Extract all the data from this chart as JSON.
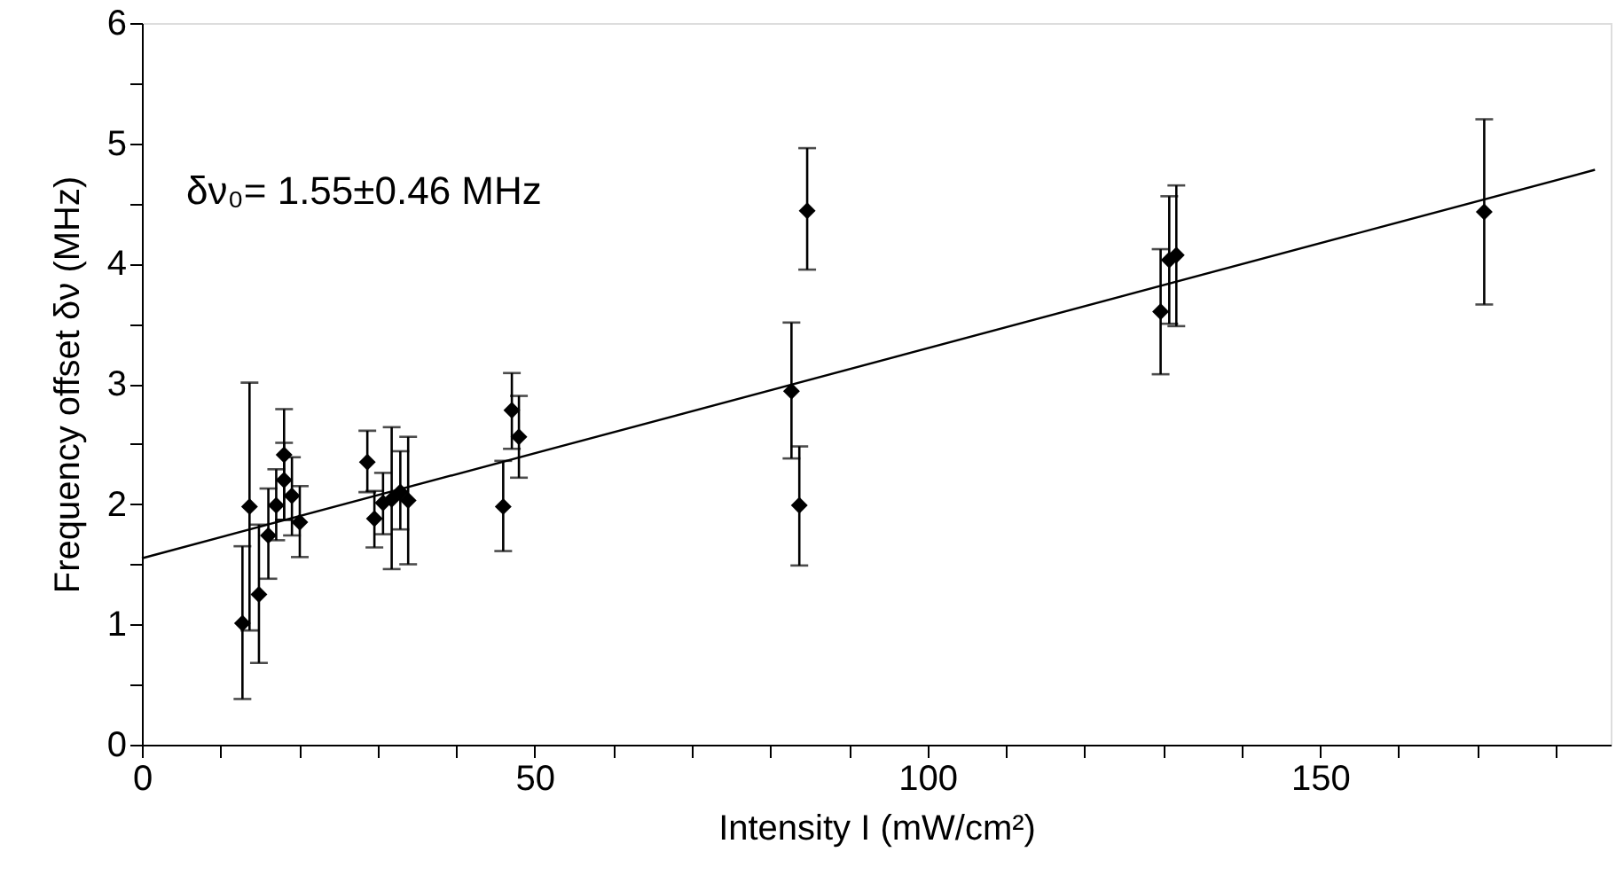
{
  "chart_data": {
    "type": "scatter",
    "xlabel": "Intensity I (mW/cm²)",
    "ylabel": "Frequency offset δν (MHz)",
    "annotations": [
      "δν₀= 1.55±0.46 MHz"
    ],
    "xlim": [
      0,
      187
    ],
    "ylim": [
      0,
      6
    ],
    "xticks": [
      0,
      {
        "value": 10,
        "label": null
      },
      {
        "value": 20,
        "label": null
      },
      {
        "value": 30,
        "label": null
      },
      {
        "value": 40,
        "label": null
      },
      50,
      {
        "value": 60,
        "label": null
      },
      {
        "value": 70,
        "label": null
      },
      {
        "value": 80,
        "label": null
      },
      {
        "value": 90,
        "label": null
      },
      100,
      {
        "value": 110,
        "label": null
      },
      {
        "value": 120,
        "label": null
      },
      {
        "value": 130,
        "label": null
      },
      {
        "value": 140,
        "label": null
      },
      150,
      {
        "value": 160,
        "label": null
      },
      {
        "value": 170,
        "label": null
      },
      {
        "value": 180,
        "label": null
      }
    ],
    "yticks": [
      0,
      {
        "value": 0.5,
        "label": null
      },
      1,
      {
        "value": 1.5,
        "label": null
      },
      2,
      {
        "value": 2.5,
        "label": null
      },
      3,
      {
        "value": 3.5,
        "label": null
      },
      4,
      {
        "value": 4.5,
        "label": null
      },
      5,
      {
        "value": 5.5,
        "label": null
      },
      6
    ],
    "grid": false,
    "series": [
      {
        "color": "#000000",
        "marker": "diamond",
        "x": [
          12.8,
          13.7,
          14.9,
          16.1,
          17.1,
          18.1,
          18.1,
          19.1,
          20.1,
          28.7,
          29.6,
          30.7,
          31.8,
          32.9,
          33.9,
          46.0,
          47.1,
          48.0,
          82.7,
          83.7,
          84.7,
          129.7,
          130.8,
          131.7,
          170.9
        ],
        "values": [
          1.01,
          1.98,
          1.25,
          1.74,
          1.99,
          2.41,
          2.2,
          2.07,
          1.85,
          2.35,
          1.88,
          2.01,
          2.04,
          2.1,
          2.03,
          1.98,
          2.78,
          2.56,
          2.94,
          1.99,
          4.44,
          3.6,
          4.03,
          4.07,
          4.43
        ],
        "errors": [
          [
            0.38,
            1.65
          ],
          [
            0.95,
            3.01
          ],
          [
            0.68,
            1.83
          ],
          [
            1.38,
            2.13
          ],
          [
            1.7,
            2.29
          ],
          [
            1.87,
            2.79
          ],
          [
            1.87,
            2.51
          ],
          [
            1.74,
            2.39
          ],
          [
            1.56,
            2.15
          ],
          [
            2.1,
            2.61
          ],
          [
            1.64,
            2.11
          ],
          [
            1.75,
            2.26
          ],
          [
            1.46,
            2.64
          ],
          [
            1.79,
            2.44
          ],
          [
            1.5,
            2.56
          ],
          [
            1.61,
            2.36
          ],
          [
            2.46,
            3.09
          ],
          [
            2.22,
            2.9
          ],
          [
            2.38,
            3.51
          ],
          [
            1.49,
            2.48
          ],
          [
            3.95,
            4.96
          ],
          [
            3.08,
            4.12
          ],
          [
            3.5,
            4.56
          ],
          [
            3.48,
            4.65
          ],
          [
            3.66,
            5.2
          ]
        ]
      },
      {
        "type": "line",
        "color": "#000000",
        "marker": "none",
        "line_style": "solid",
        "x": [
          0,
          185
        ],
        "values": [
          1.55,
          4.78
        ]
      }
    ]
  }
}
